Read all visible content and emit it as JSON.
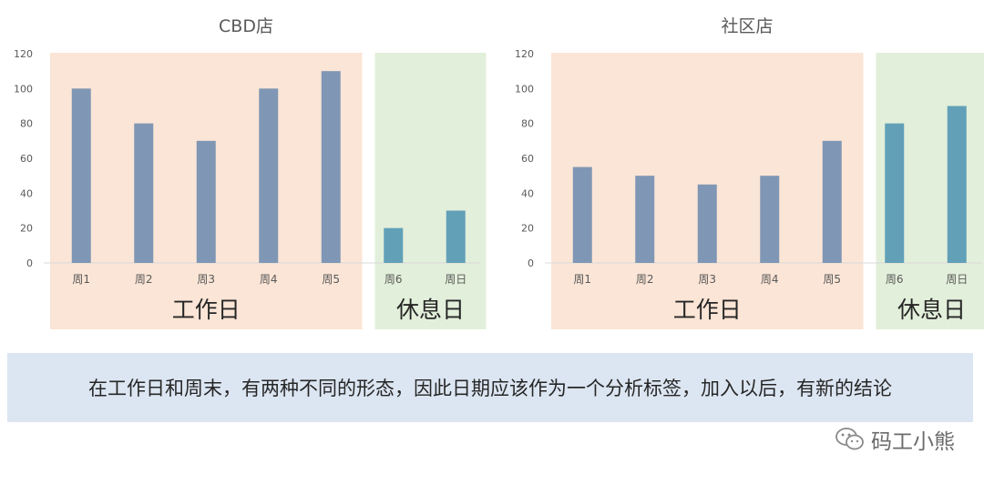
{
  "chart_data": [
    {
      "type": "bar",
      "title": "CBD店",
      "categories": [
        "周1",
        "周2",
        "周3",
        "周4",
        "周5",
        "周6",
        "周日"
      ],
      "values": [
        100,
        80,
        70,
        100,
        110,
        20,
        30
      ],
      "ylim": [
        0,
        120
      ],
      "yticks": [
        0,
        20,
        40,
        60,
        80,
        100,
        120
      ],
      "regions": [
        {
          "label": "工作日",
          "categories": [
            "周1",
            "周2",
            "周3",
            "周4",
            "周5"
          ],
          "color": "#fbe5d6",
          "bar_color": "#7f97b4"
        },
        {
          "label": "休息日",
          "categories": [
            "周6",
            "周日"
          ],
          "color": "#e2efda",
          "bar_color": "#62a0b8"
        }
      ],
      "grid": false
    },
    {
      "type": "bar",
      "title": "社区店",
      "categories": [
        "周1",
        "周2",
        "周3",
        "周4",
        "周5",
        "周6",
        "周日"
      ],
      "values": [
        55,
        50,
        45,
        50,
        70,
        80,
        90
      ],
      "ylim": [
        0,
        120
      ],
      "yticks": [
        0,
        20,
        40,
        60,
        80,
        100,
        120
      ],
      "regions": [
        {
          "label": "工作日",
          "categories": [
            "周1",
            "周2",
            "周3",
            "周4",
            "周5"
          ],
          "color": "#fbe5d6",
          "bar_color": "#7f97b4"
        },
        {
          "label": "休息日",
          "categories": [
            "周6",
            "周日"
          ],
          "color": "#e2efda",
          "bar_color": "#62a0b8"
        }
      ],
      "grid": false
    }
  ],
  "caption": "在工作日和周末，有两种不同的形态，因此日期应该作为一个分析标签，加入以后，有新的结论",
  "watermark": {
    "icon": "wechat-icon",
    "text": "码工小熊"
  }
}
